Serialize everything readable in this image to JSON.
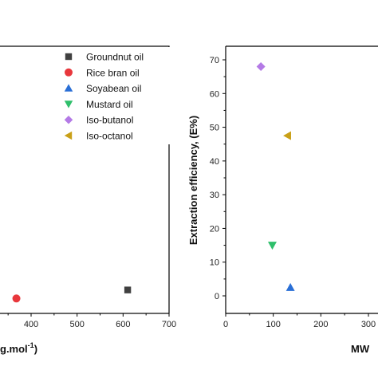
{
  "chart_data": [
    {
      "type": "scatter",
      "title": "",
      "xlabel_visible": "g.mol",
      "xlabel_sup": "-1",
      "xlabel_close": ")",
      "ylabel": "",
      "x_ticks": [
        "400",
        "500",
        "600",
        "700"
      ],
      "xlim": [
        330,
        700
      ],
      "ylim": [
        0,
        75
      ],
      "grid": false,
      "legend_position": "top-right",
      "series": [
        {
          "name": "Groundnut oil",
          "marker": "square",
          "color": "#404040",
          "x": [
            610
          ],
          "y": [
            5
          ]
        },
        {
          "name": "Rice bran oil",
          "marker": "circle",
          "color": "#e8373c",
          "x": [
            368
          ],
          "y": [
            2.5
          ]
        },
        {
          "name": "Soyabean oil",
          "marker": "triangle-up",
          "color": "#2a6fd6",
          "x": [],
          "y": []
        },
        {
          "name": "Mustard oil",
          "marker": "triangle-down",
          "color": "#2fbf6b",
          "x": [],
          "y": []
        },
        {
          "name": "Iso-butanol",
          "marker": "diamond",
          "color": "#b47ae6",
          "x": [],
          "y": []
        },
        {
          "name": "Iso-octanol",
          "marker": "triangle-left",
          "color": "#c9a017",
          "x": [],
          "y": []
        }
      ]
    },
    {
      "type": "scatter",
      "title": "",
      "xlabel": "MW",
      "ylabel": "Extraction efficiency, (E%)",
      "x_ticks": [
        "0",
        "100",
        "200",
        "300"
      ],
      "y_ticks": [
        "0",
        "10",
        "20",
        "30",
        "40",
        "50",
        "60",
        "70"
      ],
      "xlim": [
        0,
        330
      ],
      "ylim": [
        0,
        72
      ],
      "grid": false,
      "series": [
        {
          "name": "Iso-butanol",
          "marker": "diamond",
          "color": "#b47ae6",
          "x": [
            74
          ],
          "y": [
            68
          ]
        },
        {
          "name": "Iso-octanol",
          "marker": "triangle-left",
          "color": "#c9a017",
          "x": [
            130
          ],
          "y": [
            47.5
          ]
        },
        {
          "name": "Mustard oil",
          "marker": "triangle-down",
          "color": "#2fbf6b",
          "x": [
            98
          ],
          "y": [
            15
          ]
        },
        {
          "name": "Soyabean oil",
          "marker": "triangle-up",
          "color": "#2a6fd6",
          "x": [
            136
          ],
          "y": [
            2.5
          ]
        }
      ]
    }
  ]
}
